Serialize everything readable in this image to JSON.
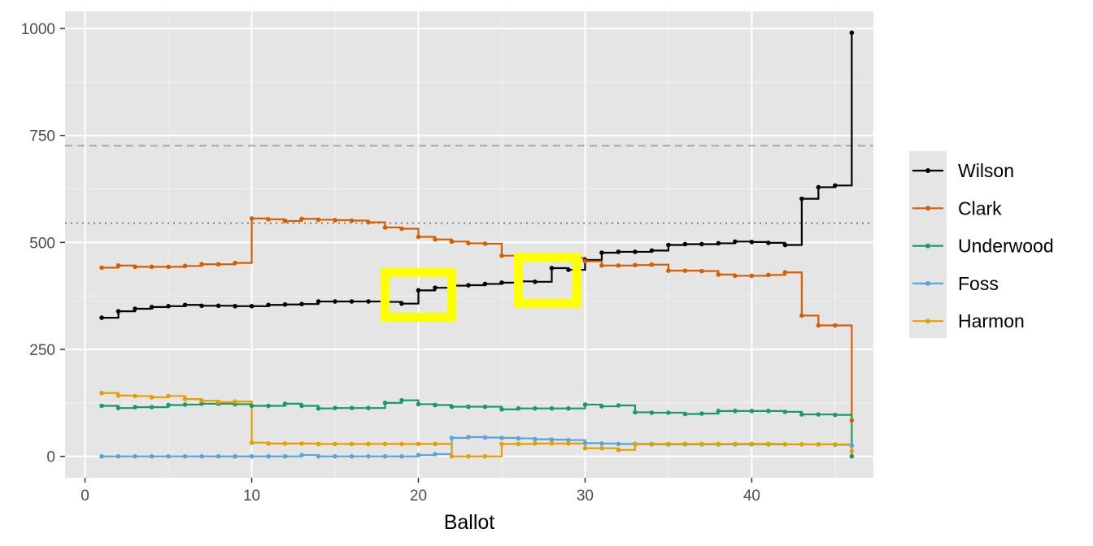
{
  "chart_data": {
    "type": "line",
    "step": true,
    "title": "",
    "xlabel": "Ballot",
    "ylabel": "",
    "xlim": [
      -1.2,
      47.3
    ],
    "ylim": [
      -50,
      1040
    ],
    "x_ticks": [
      0,
      10,
      20,
      30,
      40
    ],
    "y_ticks": [
      0,
      250,
      500,
      750,
      1000
    ],
    "grid": true,
    "legend_position": "right",
    "reference_lines": [
      {
        "y": 726,
        "style": "dashed",
        "color": "#a6a6a6"
      },
      {
        "y": 545,
        "style": "dotted",
        "color": "#7f7f7f"
      }
    ],
    "highlight_boxes": [
      {
        "x": [
          18,
          22
        ],
        "y": [
          325,
          430
        ],
        "color": "#ffff00"
      },
      {
        "x": [
          26,
          29.5
        ],
        "y": [
          358,
          465
        ],
        "color": "#ffff00"
      }
    ],
    "x": [
      1,
      2,
      3,
      4,
      5,
      6,
      7,
      8,
      9,
      10,
      11,
      12,
      13,
      14,
      15,
      16,
      17,
      18,
      19,
      20,
      21,
      22,
      23,
      24,
      25,
      26,
      27,
      28,
      29,
      30,
      31,
      32,
      33,
      34,
      35,
      36,
      37,
      38,
      39,
      40,
      41,
      42,
      43,
      44,
      45,
      46
    ],
    "series": [
      {
        "name": "Wilson",
        "color": "#000000",
        "values": [
          324,
          339,
          345,
          349,
          351,
          354,
          352,
          352,
          351,
          351,
          354,
          355,
          356,
          362,
          362,
          362,
          362,
          361,
          357,
          388,
          394,
          399,
          400,
          403,
          406,
          409,
          408,
          440,
          436,
          459,
          476,
          478,
          478,
          481,
          494,
          496,
          496,
          498,
          502,
          501,
          499,
          494,
          602,
          629,
          633,
          990
        ]
      },
      {
        "name": "Clark",
        "color": "#d55e00",
        "values": [
          441,
          446,
          443,
          443,
          443,
          445,
          449,
          449,
          452,
          556,
          554,
          550,
          555,
          553,
          552,
          551,
          547,
          535,
          532,
          513,
          507,
          502,
          498,
          497,
          469,
          466,
          469,
          468,
          464,
          456,
          446,
          446,
          447,
          448,
          434,
          434,
          433,
          425,
          422,
          422,
          424,
          430,
          329,
          306,
          306,
          84
        ]
      },
      {
        "name": "Underwood",
        "color": "#1a9a6b",
        "values": [
          118,
          113,
          115,
          115,
          120,
          121,
          123,
          123,
          122,
          118,
          118,
          123,
          118,
          112,
          113,
          113,
          113,
          125,
          131,
          122,
          120,
          116,
          116,
          116,
          110,
          112,
          112,
          112,
          112,
          121,
          117,
          119,
          103,
          102,
          102,
          99,
          100,
          106,
          106,
          106,
          106,
          104,
          98,
          98,
          97,
          0
        ]
      },
      {
        "name": "Foss",
        "color": "#56a6dc",
        "values": [
          0,
          0,
          0,
          0,
          0,
          0,
          0,
          0,
          0,
          0,
          0,
          0,
          3,
          0,
          0,
          0,
          0,
          0,
          0,
          3,
          5,
          43,
          45,
          44,
          43,
          42,
          40,
          39,
          38,
          31,
          30,
          29,
          29,
          28,
          28,
          28,
          28,
          28,
          28,
          28,
          28,
          28,
          28,
          28,
          27,
          25
        ]
      },
      {
        "name": "Harmon",
        "color": "#e69f00",
        "values": [
          148,
          142,
          141,
          138,
          141,
          134,
          130,
          127,
          128,
          32,
          30,
          30,
          30,
          29,
          29,
          29,
          29,
          29,
          29,
          29,
          29,
          0,
          0,
          0,
          29,
          29,
          30,
          30,
          30,
          19,
          19,
          15,
          28,
          29,
          29,
          29,
          29,
          29,
          29,
          29,
          29,
          28,
          28,
          28,
          28,
          12
        ]
      }
    ]
  }
}
